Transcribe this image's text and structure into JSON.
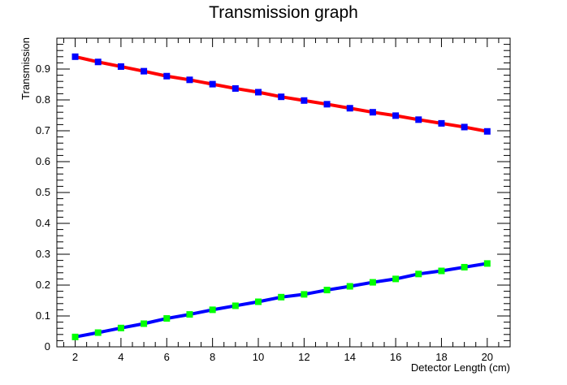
{
  "chart_data": {
    "type": "line",
    "title": "Transmission graph",
    "xlabel": "Detector Length (cm)",
    "ylabel": "Transmission",
    "xlim": [
      1.2,
      21.0
    ],
    "ylim": [
      0,
      1.0
    ],
    "x_ticks": [
      2,
      4,
      6,
      8,
      10,
      12,
      14,
      16,
      18,
      20
    ],
    "x_tick_labels": [
      "2",
      "4",
      "6",
      "8",
      "10",
      "12",
      "14",
      "16",
      "18",
      "20"
    ],
    "y_ticks": [
      0,
      0.1,
      0.2,
      0.3,
      0.4,
      0.5,
      0.6,
      0.7,
      0.8,
      0.9
    ],
    "y_tick_labels": [
      "0",
      "0.1",
      "0.2",
      "0.3",
      "0.4",
      "0.5",
      "0.6",
      "0.7",
      "0.8",
      "0.9"
    ],
    "grid": false,
    "legend": "none",
    "x": [
      2,
      3,
      4,
      5,
      6,
      7,
      8,
      9,
      10,
      11,
      12,
      13,
      14,
      15,
      16,
      17,
      18,
      19,
      20
    ],
    "series": [
      {
        "line_color": "#ff0000",
        "marker_color": "#0000ff",
        "marker": "square",
        "values": [
          0.94,
          0.923,
          0.908,
          0.893,
          0.877,
          0.865,
          0.851,
          0.837,
          0.825,
          0.81,
          0.798,
          0.786,
          0.773,
          0.76,
          0.749,
          0.736,
          0.724,
          0.712,
          0.698
        ]
      },
      {
        "line_color": "#0000ff",
        "marker_color": "#00ff00",
        "marker": "square",
        "values": [
          0.032,
          0.046,
          0.061,
          0.075,
          0.092,
          0.105,
          0.12,
          0.133,
          0.146,
          0.161,
          0.17,
          0.184,
          0.196,
          0.209,
          0.22,
          0.236,
          0.246,
          0.258,
          0.27
        ]
      }
    ]
  }
}
